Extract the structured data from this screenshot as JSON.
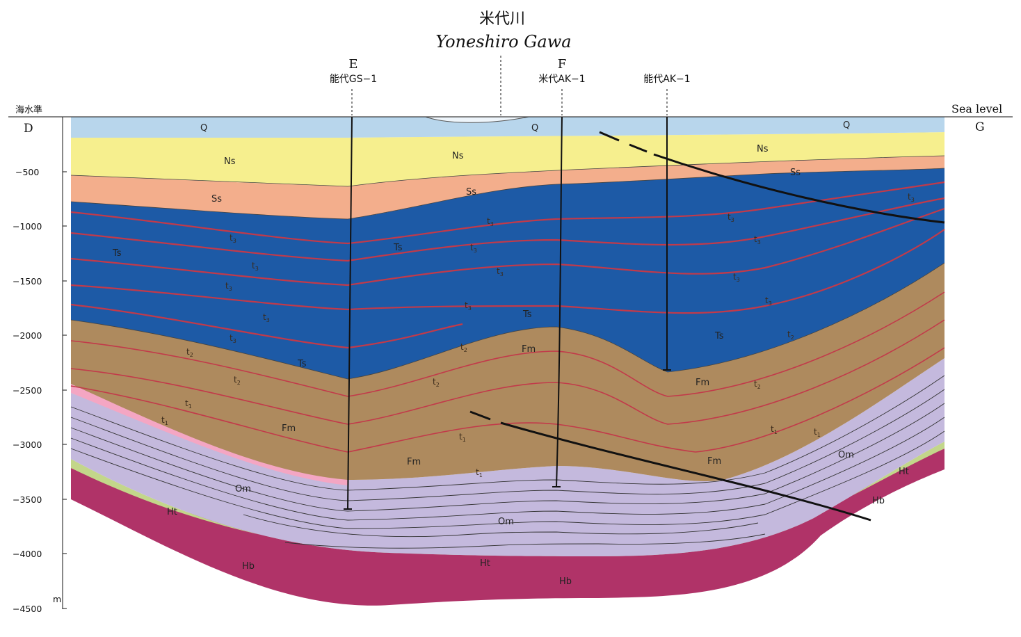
{
  "river": {
    "name_jp": "米代川",
    "name_en": "Yoneshiro Gawa"
  },
  "points": {
    "left": "D",
    "right": "G"
  },
  "wells": [
    {
      "letter": "E",
      "name": "能代GS−1"
    },
    {
      "letter": "F",
      "name": "米代AK−1"
    },
    {
      "letter": "",
      "name": "能代AK−1"
    }
  ],
  "axis": {
    "left_title": "海水準",
    "right_title": "Sea level",
    "unit": "m",
    "ticks": [
      "−500",
      "−1000",
      "−1500",
      "−2000",
      "−2500",
      "−3000",
      "−3500",
      "−4000",
      "−4500"
    ]
  },
  "colors": {
    "Q": "#b8d6ec",
    "Ns": "#f6ef8e",
    "Ss": "#f3ae8c",
    "Ts": "#1d5aa6",
    "Fm": "#ae8a5e",
    "Om": "#c4b9dd",
    "Pink": "#f4a6c3",
    "Ht": "#c3d68a",
    "Hb": "#b03368",
    "marker": "#c23a4a"
  },
  "units": {
    "Q": "Q",
    "Ns": "Ns",
    "Ss": "Ss",
    "Ts": "Ts",
    "Fm": "Fm",
    "Om": "Om",
    "Ht": "Ht",
    "Hb": "Hb"
  },
  "markers": {
    "t1": "t",
    "t2": "t",
    "t3": "t",
    "sub1": "1",
    "sub2": "2",
    "sub3": "3"
  }
}
